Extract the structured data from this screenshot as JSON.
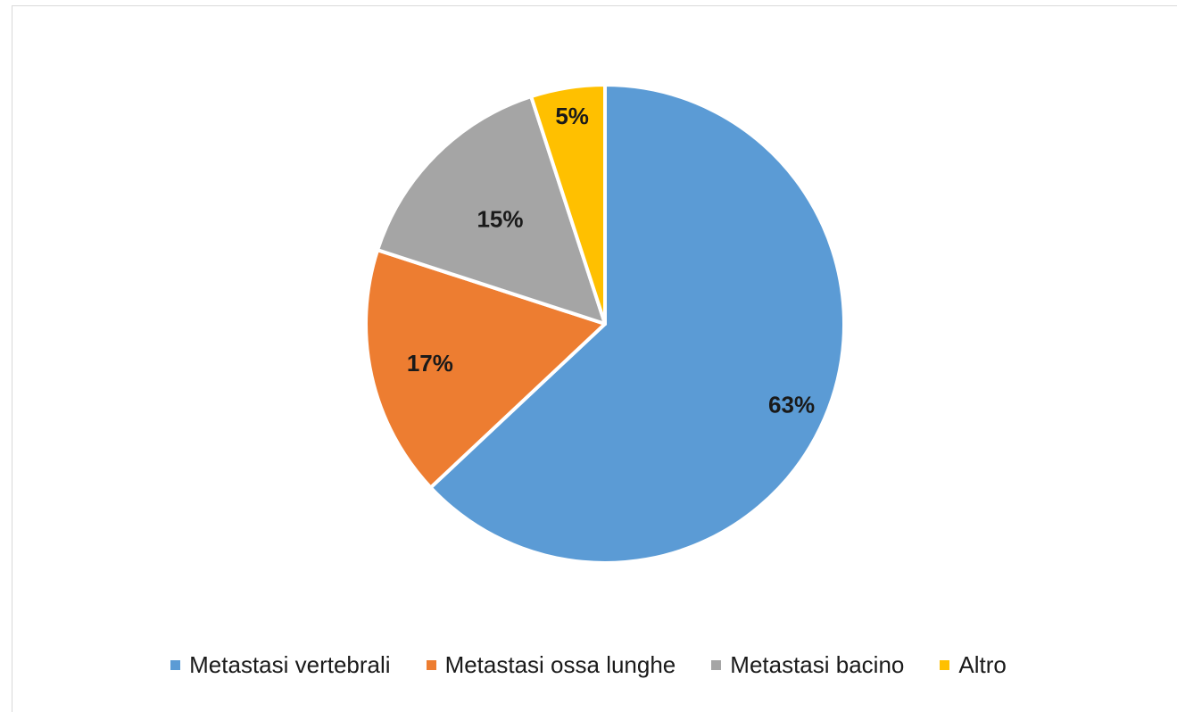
{
  "chart_data": {
    "type": "pie",
    "title": "",
    "categories": [
      "Metastasi vertebrali",
      "Metastasi ossa lunghe",
      "Metastasi bacino",
      "Altro"
    ],
    "values": [
      63,
      17,
      15,
      5
    ],
    "data_labels": [
      "63%",
      "17%",
      "15%",
      "5%"
    ],
    "colors": [
      "#5b9bd5",
      "#ed7d31",
      "#a5a5a5",
      "#ffc000"
    ],
    "legend_position": "bottom",
    "start_angle": "12 o'clock",
    "direction": "clockwise"
  }
}
